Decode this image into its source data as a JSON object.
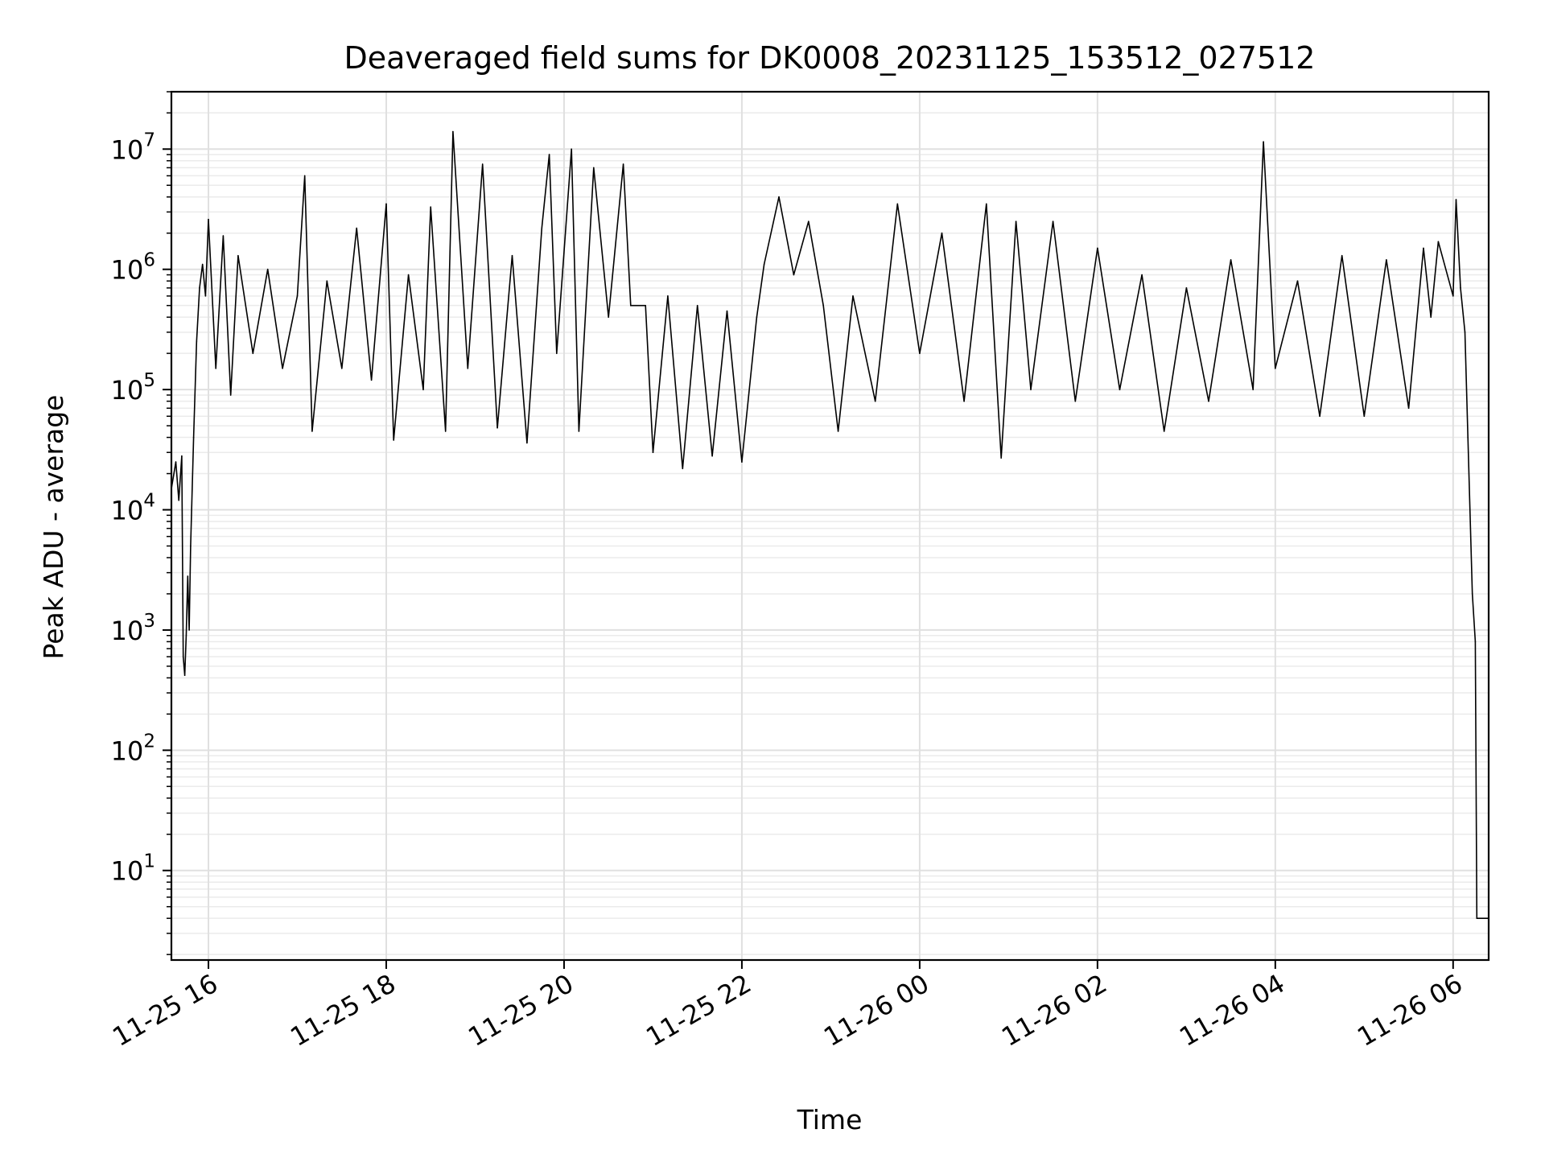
{
  "chart_data": {
    "type": "line",
    "title": "Deaveraged field sums for DK0008_20231125_153512_027512",
    "xlabel": "Time",
    "ylabel": "Peak ADU - average",
    "y_scale": "log",
    "ylim": [
      1.8,
      30000000
    ],
    "xlim": [
      "2023-11-25 15:35",
      "2023-11-26 06:24"
    ],
    "grid": "major and minor, light gray",
    "line_color": "#000000",
    "x_ticks": [
      {
        "value": "2023-11-25 16:00",
        "label": "11-25 16"
      },
      {
        "value": "2023-11-25 18:00",
        "label": "11-25 18"
      },
      {
        "value": "2023-11-25 20:00",
        "label": "11-25 20"
      },
      {
        "value": "2023-11-25 22:00",
        "label": "11-25 22"
      },
      {
        "value": "2023-11-26 00:00",
        "label": "11-26 00"
      },
      {
        "value": "2023-11-26 02:00",
        "label": "11-26 02"
      },
      {
        "value": "2023-11-26 04:00",
        "label": "11-26 04"
      },
      {
        "value": "2023-11-26 06:00",
        "label": "11-26 06"
      }
    ],
    "y_ticks": [
      {
        "value": 10,
        "base": "10",
        "exp": "1"
      },
      {
        "value": 100,
        "base": "10",
        "exp": "2"
      },
      {
        "value": 1000,
        "base": "10",
        "exp": "3"
      },
      {
        "value": 10000,
        "base": "10",
        "exp": "4"
      },
      {
        "value": 100000,
        "base": "10",
        "exp": "5"
      },
      {
        "value": 1000000,
        "base": "10",
        "exp": "6"
      },
      {
        "value": 10000000,
        "base": "10",
        "exp": "7"
      }
    ],
    "series": [
      {
        "points": [
          [
            "2023-11-25 15:35",
            15000
          ],
          [
            "2023-11-25 15:38",
            25000
          ],
          [
            "2023-11-25 15:40",
            12000
          ],
          [
            "2023-11-25 15:42",
            28000
          ],
          [
            "2023-11-25 15:43",
            600
          ],
          [
            "2023-11-25 15:44",
            420
          ],
          [
            "2023-11-25 15:45",
            900
          ],
          [
            "2023-11-25 15:46",
            2800
          ],
          [
            "2023-11-25 15:47",
            1000
          ],
          [
            "2023-11-25 15:48",
            5000
          ],
          [
            "2023-11-25 15:50",
            40000
          ],
          [
            "2023-11-25 15:52",
            250000
          ],
          [
            "2023-11-25 15:54",
            700000
          ],
          [
            "2023-11-25 15:56",
            1100000
          ],
          [
            "2023-11-25 15:58",
            600000
          ],
          [
            "2023-11-25 16:00",
            2600000
          ],
          [
            "2023-11-25 16:05",
            150000
          ],
          [
            "2023-11-25 16:10",
            1900000
          ],
          [
            "2023-11-25 16:15",
            90000
          ],
          [
            "2023-11-25 16:20",
            1300000
          ],
          [
            "2023-11-25 16:30",
            200000
          ],
          [
            "2023-11-25 16:40",
            1000000
          ],
          [
            "2023-11-25 16:50",
            150000
          ],
          [
            "2023-11-25 17:00",
            600000
          ],
          [
            "2023-11-25 17:05",
            6000000
          ],
          [
            "2023-11-25 17:10",
            45000
          ],
          [
            "2023-11-25 17:20",
            800000
          ],
          [
            "2023-11-25 17:30",
            150000
          ],
          [
            "2023-11-25 17:40",
            2200000
          ],
          [
            "2023-11-25 17:50",
            120000
          ],
          [
            "2023-11-25 18:00",
            3500000
          ],
          [
            "2023-11-25 18:05",
            38000
          ],
          [
            "2023-11-25 18:15",
            900000
          ],
          [
            "2023-11-25 18:25",
            100000
          ],
          [
            "2023-11-25 18:30",
            3300000
          ],
          [
            "2023-11-25 18:40",
            45000
          ],
          [
            "2023-11-25 18:45",
            14000000
          ],
          [
            "2023-11-25 18:55",
            150000
          ],
          [
            "2023-11-25 19:05",
            7500000
          ],
          [
            "2023-11-25 19:15",
            48000
          ],
          [
            "2023-11-25 19:25",
            1300000
          ],
          [
            "2023-11-25 19:35",
            36000
          ],
          [
            "2023-11-25 19:45",
            2200000
          ],
          [
            "2023-11-25 19:50",
            9000000
          ],
          [
            "2023-11-25 19:55",
            200000
          ],
          [
            "2023-11-25 20:05",
            10000000
          ],
          [
            "2023-11-25 20:10",
            45000
          ],
          [
            "2023-11-25 20:20",
            7000000
          ],
          [
            "2023-11-25 20:30",
            400000
          ],
          [
            "2023-11-25 20:40",
            7500000
          ],
          [
            "2023-11-25 20:45",
            500000
          ],
          [
            "2023-11-25 20:55",
            500000
          ],
          [
            "2023-11-25 21:00",
            30000
          ],
          [
            "2023-11-25 21:10",
            600000
          ],
          [
            "2023-11-25 21:20",
            22000
          ],
          [
            "2023-11-25 21:30",
            500000
          ],
          [
            "2023-11-25 21:40",
            28000
          ],
          [
            "2023-11-25 21:50",
            450000
          ],
          [
            "2023-11-25 22:00",
            25000
          ],
          [
            "2023-11-25 22:10",
            400000
          ],
          [
            "2023-11-25 22:15",
            1100000
          ],
          [
            "2023-11-25 22:25",
            4000000
          ],
          [
            "2023-11-25 22:35",
            900000
          ],
          [
            "2023-11-25 22:45",
            2500000
          ],
          [
            "2023-11-25 22:55",
            500000
          ],
          [
            "2023-11-25 23:05",
            45000
          ],
          [
            "2023-11-25 23:15",
            600000
          ],
          [
            "2023-11-25 23:30",
            80000
          ],
          [
            "2023-11-25 23:45",
            3500000
          ],
          [
            "2023-11-26 00:00",
            200000
          ],
          [
            "2023-11-26 00:15",
            2000000
          ],
          [
            "2023-11-26 00:30",
            80000
          ],
          [
            "2023-11-26 00:45",
            3500000
          ],
          [
            "2023-11-26 00:55",
            27000
          ],
          [
            "2023-11-26 01:05",
            2500000
          ],
          [
            "2023-11-26 01:15",
            100000
          ],
          [
            "2023-11-26 01:30",
            2500000
          ],
          [
            "2023-11-26 01:45",
            80000
          ],
          [
            "2023-11-26 02:00",
            1500000
          ],
          [
            "2023-11-26 02:15",
            100000
          ],
          [
            "2023-11-26 02:30",
            900000
          ],
          [
            "2023-11-26 02:45",
            45000
          ],
          [
            "2023-11-26 03:00",
            700000
          ],
          [
            "2023-11-26 03:15",
            80000
          ],
          [
            "2023-11-26 03:30",
            1200000
          ],
          [
            "2023-11-26 03:45",
            100000
          ],
          [
            "2023-11-26 03:52",
            11500000
          ],
          [
            "2023-11-26 04:00",
            150000
          ],
          [
            "2023-11-26 04:15",
            800000
          ],
          [
            "2023-11-26 04:30",
            60000
          ],
          [
            "2023-11-26 04:45",
            1300000
          ],
          [
            "2023-11-26 05:00",
            60000
          ],
          [
            "2023-11-26 05:15",
            1200000
          ],
          [
            "2023-11-26 05:30",
            70000
          ],
          [
            "2023-11-26 05:40",
            1500000
          ],
          [
            "2023-11-26 05:45",
            400000
          ],
          [
            "2023-11-26 05:50",
            1700000
          ],
          [
            "2023-11-26 06:00",
            600000
          ],
          [
            "2023-11-26 06:02",
            3800000
          ],
          [
            "2023-11-26 06:05",
            700000
          ],
          [
            "2023-11-26 06:08",
            300000
          ],
          [
            "2023-11-26 06:10",
            40000
          ],
          [
            "2023-11-26 06:13",
            2000
          ],
          [
            "2023-11-26 06:15",
            800
          ],
          [
            "2023-11-26 06:16",
            4
          ],
          [
            "2023-11-26 06:24",
            4
          ]
        ]
      }
    ]
  }
}
